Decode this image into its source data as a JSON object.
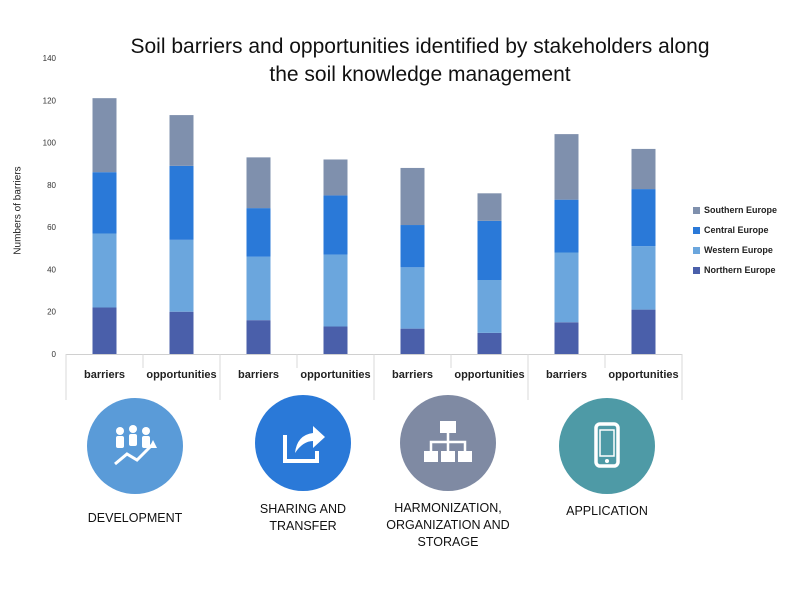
{
  "chart_data": {
    "type": "bar",
    "stacked": true,
    "title_lines": [
      "Soil barriers and opportunities identified by stakeholders along",
      "the soil knowledge management"
    ],
    "ylabel": "Numbers of barriers",
    "ylim": [
      0,
      140
    ],
    "yticks": [
      0,
      20,
      40,
      60,
      80,
      100,
      120,
      140
    ],
    "categories": [
      "barriers",
      "opportunities",
      "barriers",
      "opportunities",
      "barriers",
      "opportunities",
      "barriers",
      "opportunities"
    ],
    "series": [
      {
        "name": "Northern Europe",
        "color": "#4a5faa",
        "values": [
          22,
          20,
          16,
          13,
          12,
          10,
          15,
          21
        ]
      },
      {
        "name": "Western Europe",
        "color": "#6ba6dd",
        "values": [
          35,
          34,
          30,
          34,
          29,
          25,
          33,
          30
        ]
      },
      {
        "name": "Central Europe",
        "color": "#2a79d8",
        "values": [
          29,
          35,
          23,
          28,
          20,
          28,
          25,
          27
        ]
      },
      {
        "name": "Southern Europe",
        "color": "#7f90ad",
        "values": [
          35,
          24,
          24,
          17,
          27,
          13,
          31,
          19
        ]
      }
    ],
    "legend_order": [
      "Southern Europe",
      "Central Europe",
      "Western Europe",
      "Northern Europe"
    ],
    "legend_position": "right",
    "grid": false
  },
  "stages": [
    {
      "label": "DEVELOPMENT",
      "icon": "growth-people-icon",
      "color": "#5a9bd8"
    },
    {
      "label": "SHARING AND TRANSFER",
      "icon": "share-arrow-icon",
      "color": "#2a79d8"
    },
    {
      "label": "HARMONIZATION, ORGANIZATION AND STORAGE",
      "icon": "hierarchy-icon",
      "color": "#7f8aa3"
    },
    {
      "label": "APPLICATION",
      "icon": "mobile-phone-icon",
      "color": "#4e9aa6"
    }
  ]
}
